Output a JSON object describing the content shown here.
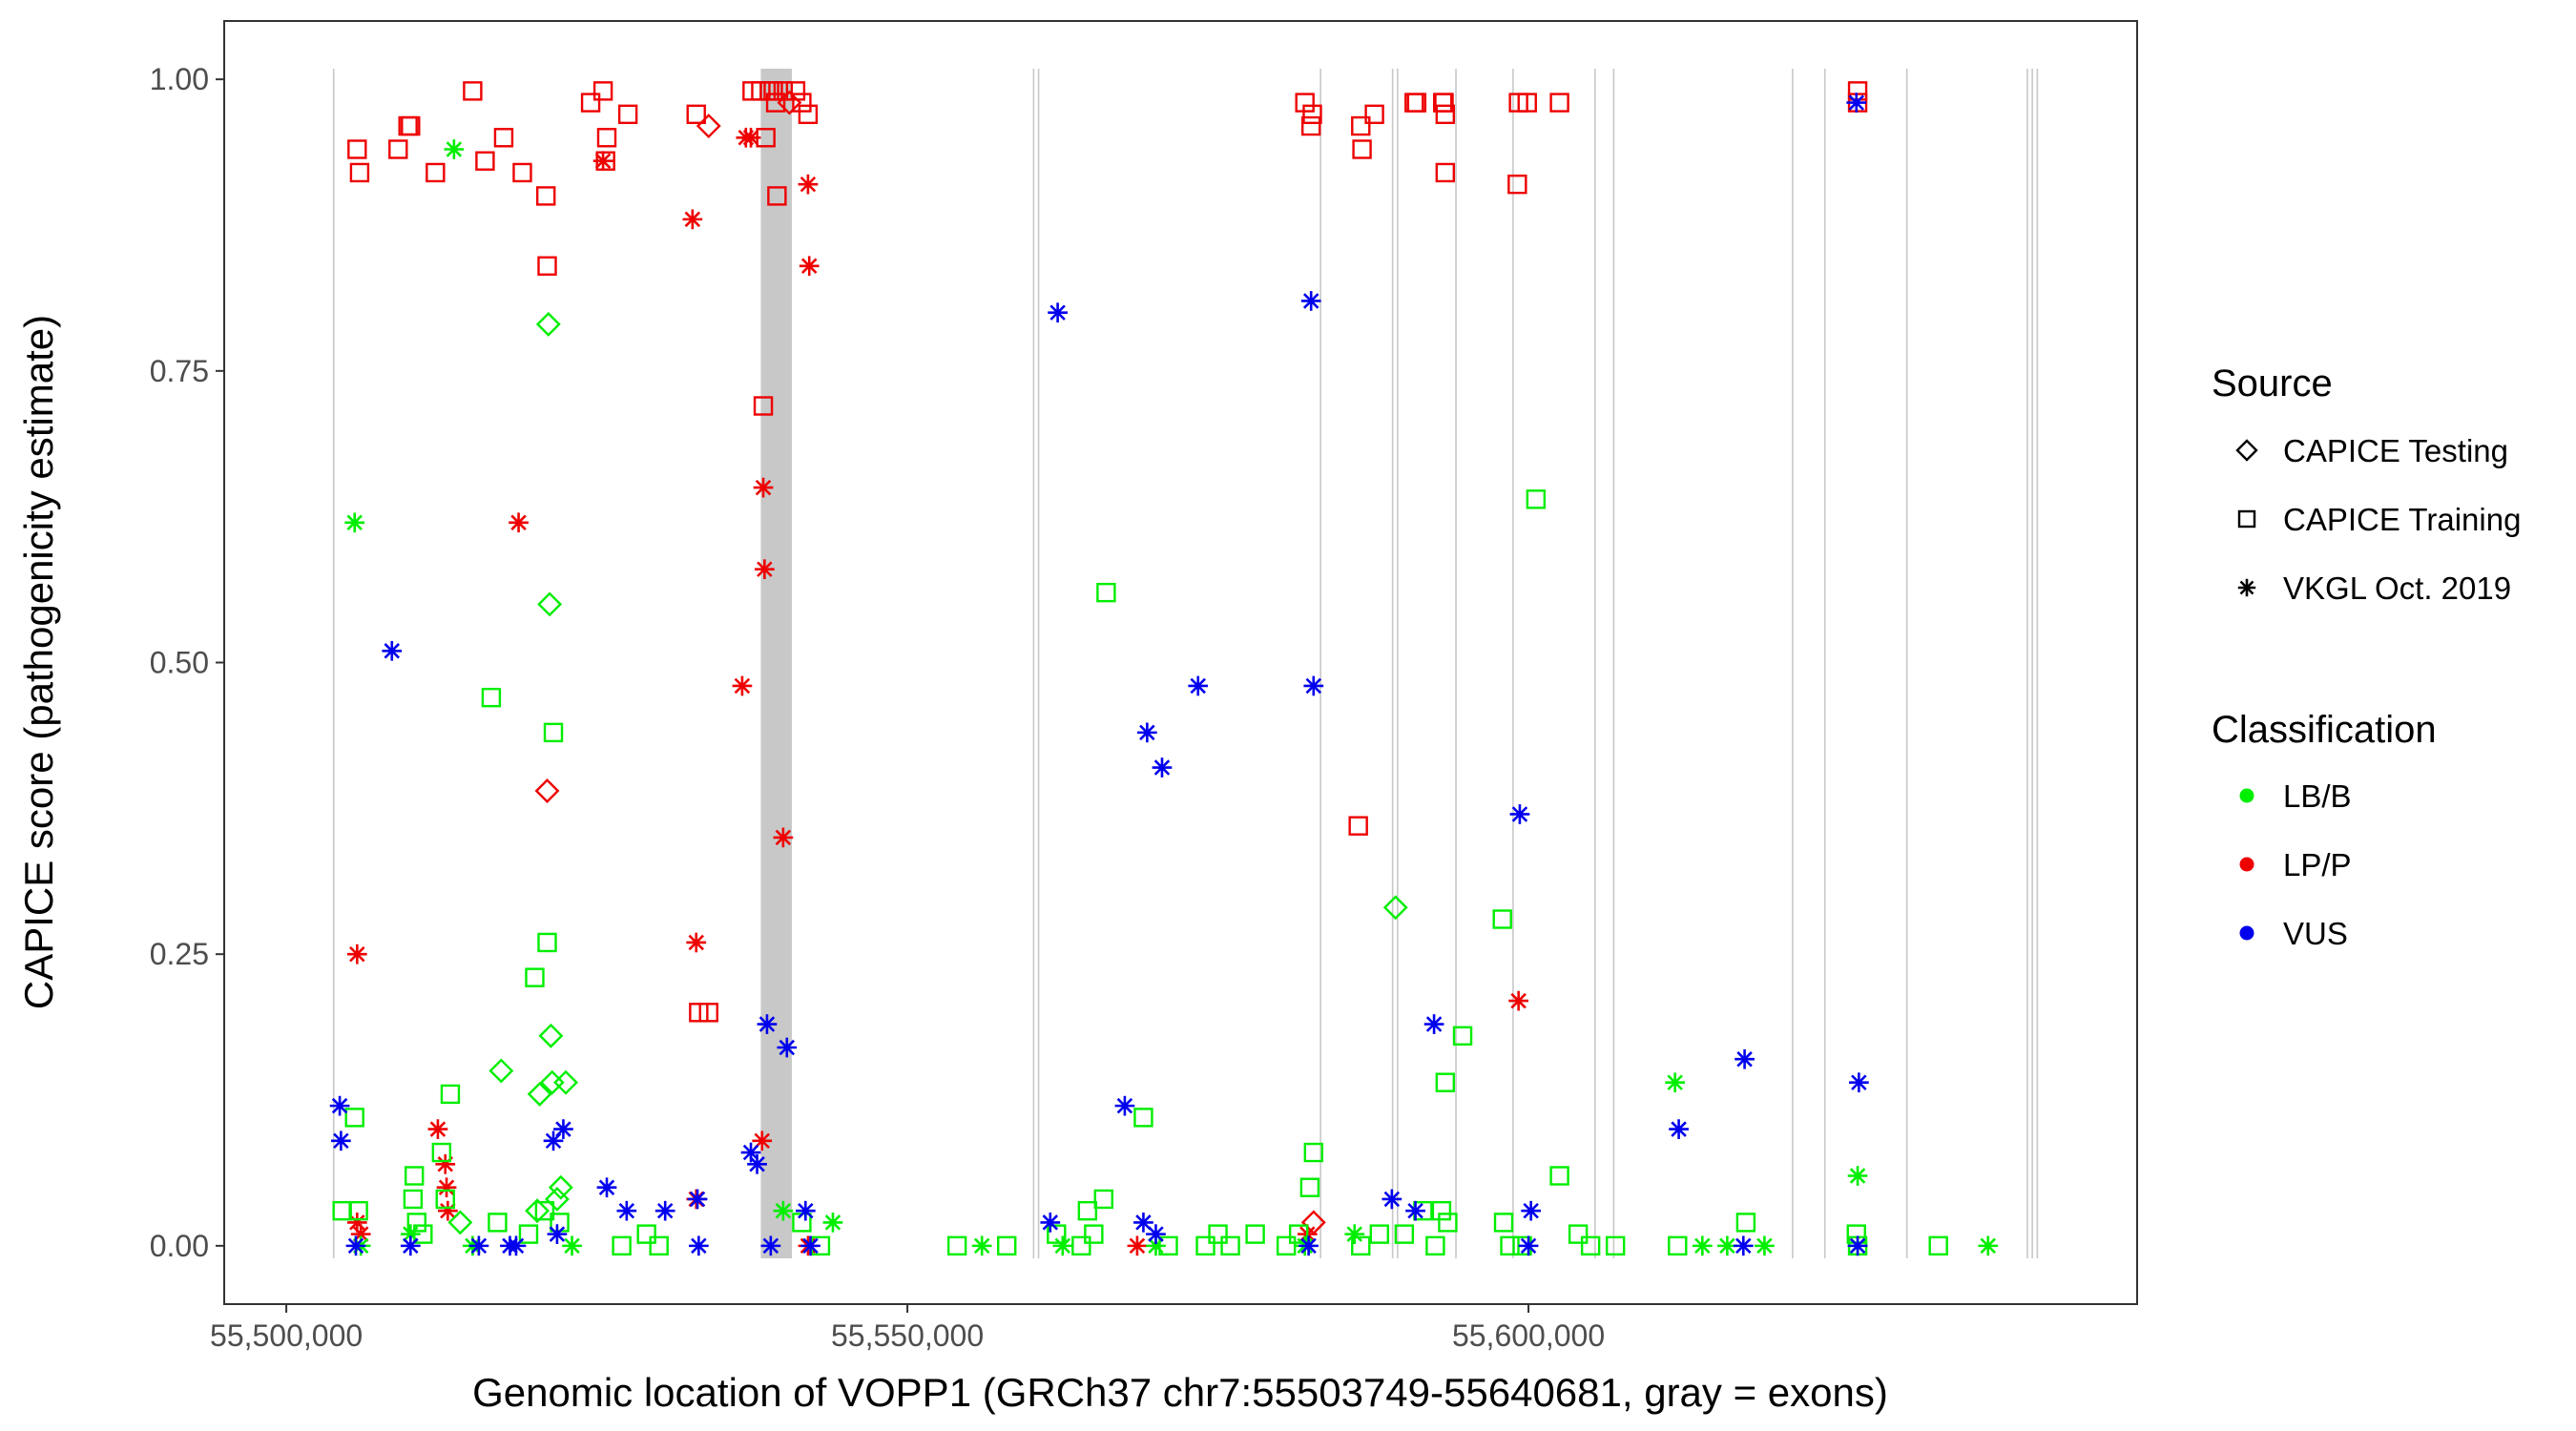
{
  "chart_data": {
    "type": "scatter",
    "xlabel": "Genomic location of VOPP1 (GRCh37 chr7:55503749-55640681, gray = exons)",
    "ylabel": "CAPICE score (pathogenicity estimate)",
    "xlim": [
      55495000,
      55649000
    ],
    "ylim": [
      -0.05,
      1.05
    ],
    "x_ticks": [
      55500000,
      55550000,
      55600000
    ],
    "x_tick_labels": [
      "55,500,000",
      "55,550,000",
      "55,600,000"
    ],
    "y_ticks": [
      0.0,
      0.25,
      0.5,
      0.75,
      1.0
    ],
    "y_tick_labels": [
      "0.00",
      "0.25",
      "0.50",
      "0.75",
      "1.00"
    ],
    "exons": [
      [
        55503749,
        55503820
      ],
      [
        55538200,
        55540700
      ],
      [
        55560100,
        55560180
      ],
      [
        55560500,
        55560560
      ],
      [
        55583200,
        55583300
      ],
      [
        55589000,
        55589080
      ],
      [
        55589400,
        55589460
      ],
      [
        55594100,
        55594200
      ],
      [
        55598700,
        55598760
      ],
      [
        55605300,
        55605360
      ],
      [
        55606800,
        55606860
      ],
      [
        55621200,
        55621300
      ],
      [
        55623800,
        55623880
      ],
      [
        55630400,
        55630480
      ],
      [
        55640100,
        55640180
      ],
      [
        55640500,
        55640560
      ],
      [
        55640900,
        55640960
      ]
    ],
    "legend": {
      "source_title": "Source",
      "source_items": [
        {
          "label": "CAPICE Testing",
          "shape": "diamond"
        },
        {
          "label": "CAPICE Training",
          "shape": "square"
        },
        {
          "label": "VKGL Oct. 2019",
          "shape": "asterisk"
        }
      ],
      "classification_title": "Classification",
      "classification_items": [
        {
          "label": "LB/B",
          "color": "#00ee00"
        },
        {
          "label": "LP/P",
          "color": "#ee0000"
        },
        {
          "label": "VUS",
          "color": "#0000ee"
        }
      ]
    },
    "series": [
      {
        "name": "LP/P - CAPICE Training",
        "class": "LP/P",
        "source": "CAPICE Training",
        "points": [
          [
            55505700,
            0.94
          ],
          [
            55505900,
            0.92
          ],
          [
            55509000,
            0.94
          ],
          [
            55509800,
            0.96
          ],
          [
            55510000,
            0.96
          ],
          [
            55512000,
            0.92
          ],
          [
            55515000,
            0.99
          ],
          [
            55516000,
            0.93
          ],
          [
            55517500,
            0.95
          ],
          [
            55519000,
            0.92
          ],
          [
            55520900,
            0.9
          ],
          [
            55521000,
            0.84
          ],
          [
            55524500,
            0.98
          ],
          [
            55525500,
            0.99
          ],
          [
            55525700,
            0.93
          ],
          [
            55525800,
            0.95
          ],
          [
            55527500,
            0.97
          ],
          [
            55533000,
            0.97
          ],
          [
            55533200,
            0.2
          ],
          [
            55534000,
            0.2
          ],
          [
            55537500,
            0.99
          ],
          [
            55538200,
            0.99
          ],
          [
            55538400,
            0.72
          ],
          [
            55538600,
            0.95
          ],
          [
            55538900,
            0.99
          ],
          [
            55539200,
            0.99
          ],
          [
            55539400,
            0.98
          ],
          [
            55539500,
            0.9
          ],
          [
            55540000,
            0.99
          ],
          [
            55541000,
            0.99
          ],
          [
            55541500,
            0.98
          ],
          [
            55542000,
            0.97
          ],
          [
            55582000,
            0.98
          ],
          [
            55582500,
            0.96
          ],
          [
            55582600,
            0.97
          ],
          [
            55586300,
            0.36
          ],
          [
            55586500,
            0.96
          ],
          [
            55586600,
            0.94
          ],
          [
            55587600,
            0.97
          ],
          [
            55590800,
            0.98
          ],
          [
            55591000,
            0.98
          ],
          [
            55593100,
            0.98
          ],
          [
            55593200,
            0.98
          ],
          [
            55593300,
            0.97
          ],
          [
            55593300,
            0.92
          ],
          [
            55599100,
            0.91
          ],
          [
            55599200,
            0.98
          ],
          [
            55599900,
            0.98
          ],
          [
            55602500,
            0.98
          ],
          [
            55626500,
            0.99
          ],
          [
            55626500,
            0.98
          ]
        ]
      },
      {
        "name": "LP/P - CAPICE Testing",
        "class": "LP/P",
        "source": "CAPICE Testing",
        "points": [
          [
            55534000,
            0.96
          ],
          [
            55521000,
            0.39
          ],
          [
            55540500,
            0.98
          ],
          [
            55582700,
            0.02
          ]
        ]
      },
      {
        "name": "LP/P - VKGL Oct. 2019",
        "class": "LP/P",
        "source": "VKGL Oct. 2019",
        "points": [
          [
            55505700,
            0.25
          ],
          [
            55505700,
            0.02
          ],
          [
            55506000,
            0.01
          ],
          [
            55512200,
            0.1
          ],
          [
            55512800,
            0.07
          ],
          [
            55512900,
            0.05
          ],
          [
            55513000,
            0.03
          ],
          [
            55518700,
            0.62
          ],
          [
            55525500,
            0.93
          ],
          [
            55532700,
            0.88
          ],
          [
            55533000,
            0.26
          ],
          [
            55533000,
            0.04
          ],
          [
            55536700,
            0.48
          ],
          [
            55537000,
            0.95
          ],
          [
            55537400,
            0.95
          ],
          [
            55538300,
            0.09
          ],
          [
            55538400,
            0.65
          ],
          [
            55538500,
            0.58
          ],
          [
            55540000,
            0.35
          ],
          [
            55542000,
            0.91
          ],
          [
            55542100,
            0.84
          ],
          [
            55542000,
            0.0
          ],
          [
            55568500,
            0.0
          ],
          [
            55582200,
            0.01
          ],
          [
            55599200,
            0.21
          ]
        ]
      },
      {
        "name": "LB/B - CAPICE Training",
        "class": "LB/B",
        "source": "CAPICE Training",
        "points": [
          [
            55504500,
            0.03
          ],
          [
            55505500,
            0.11
          ],
          [
            55505800,
            0.03
          ],
          [
            55510300,
            0.06
          ],
          [
            55510200,
            0.04
          ],
          [
            55510500,
            0.02
          ],
          [
            55511000,
            0.01
          ],
          [
            55512500,
            0.08
          ],
          [
            55512800,
            0.04
          ],
          [
            55513200,
            0.13
          ],
          [
            55516500,
            0.47
          ],
          [
            55520000,
            0.23
          ],
          [
            55521000,
            0.26
          ],
          [
            55521500,
            0.44
          ],
          [
            55517000,
            0.02
          ],
          [
            55519500,
            0.01
          ],
          [
            55520800,
            0.03
          ],
          [
            55522000,
            0.02
          ],
          [
            55527000,
            0.0
          ],
          [
            55529000,
            0.01
          ],
          [
            55530000,
            0.0
          ],
          [
            55541500,
            0.02
          ],
          [
            55543000,
            0.0
          ],
          [
            55554000,
            0.0
          ],
          [
            55558000,
            0.0
          ],
          [
            55562000,
            0.01
          ],
          [
            55564000,
            0.0
          ],
          [
            55564500,
            0.03
          ],
          [
            55565000,
            0.01
          ],
          [
            55565800,
            0.04
          ],
          [
            55566000,
            0.56
          ],
          [
            55569000,
            0.11
          ],
          [
            55571000,
            0.0
          ],
          [
            55574000,
            0.0
          ],
          [
            55575000,
            0.01
          ],
          [
            55576000,
            0.0
          ],
          [
            55578000,
            0.01
          ],
          [
            55580500,
            0.0
          ],
          [
            55581500,
            0.01
          ],
          [
            55582400,
            0.05
          ],
          [
            55582700,
            0.08
          ],
          [
            55586500,
            0.0
          ],
          [
            55588000,
            0.01
          ],
          [
            55590000,
            0.01
          ],
          [
            55591500,
            0.03
          ],
          [
            55592500,
            0.0
          ],
          [
            55593000,
            0.03
          ],
          [
            55593300,
            0.14
          ],
          [
            55593500,
            0.02
          ],
          [
            55594700,
            0.18
          ],
          [
            55597900,
            0.28
          ],
          [
            55598000,
            0.02
          ],
          [
            55598500,
            0.0
          ],
          [
            55599500,
            0.0
          ],
          [
            55600600,
            0.64
          ],
          [
            55602500,
            0.06
          ],
          [
            55604000,
            0.01
          ],
          [
            55605000,
            0.0
          ],
          [
            55607000,
            0.0
          ],
          [
            55612000,
            0.0
          ],
          [
            55617500,
            0.02
          ],
          [
            55626400,
            0.01
          ],
          [
            55626500,
            0.0
          ],
          [
            55633000,
            0.0
          ]
        ]
      },
      {
        "name": "LB/B - CAPICE Testing",
        "class": "LB/B",
        "source": "CAPICE Testing",
        "points": [
          [
            55517300,
            0.15
          ],
          [
            55520400,
            0.13
          ],
          [
            55521100,
            0.79
          ],
          [
            55521200,
            0.55
          ],
          [
            55521300,
            0.18
          ],
          [
            55521400,
            0.14
          ],
          [
            55522500,
            0.14
          ],
          [
            55522100,
            0.05
          ],
          [
            55520200,
            0.03
          ],
          [
            55521800,
            0.04
          ],
          [
            55589300,
            0.29
          ],
          [
            55514000,
            0.02
          ]
        ]
      },
      {
        "name": "LB/B - VKGL Oct. 2019",
        "class": "LB/B",
        "source": "VKGL Oct. 2019",
        "points": [
          [
            55505500,
            0.62
          ],
          [
            55513500,
            0.94
          ],
          [
            55506000,
            0.0
          ],
          [
            55510000,
            0.01
          ],
          [
            55515000,
            0.0
          ],
          [
            55523000,
            0.0
          ],
          [
            55540000,
            0.03
          ],
          [
            55544000,
            0.02
          ],
          [
            55556000,
            0.0
          ],
          [
            55562500,
            0.0
          ],
          [
            55570000,
            0.0
          ],
          [
            55582000,
            0.0
          ],
          [
            55586000,
            0.01
          ],
          [
            55611800,
            0.14
          ],
          [
            55614000,
            0.0
          ],
          [
            55616000,
            0.0
          ],
          [
            55619000,
            0.0
          ],
          [
            55626500,
            0.06
          ],
          [
            55626500,
            0.0
          ],
          [
            55637000,
            0.0
          ]
        ]
      },
      {
        "name": "VUS - VKGL Oct. 2019",
        "class": "VUS",
        "source": "VKGL Oct. 2019",
        "points": [
          [
            55504300,
            0.12
          ],
          [
            55504400,
            0.09
          ],
          [
            55505600,
            0.0
          ],
          [
            55508500,
            0.51
          ],
          [
            55510000,
            0.0
          ],
          [
            55515500,
            0.0
          ],
          [
            55518000,
            0.0
          ],
          [
            55518500,
            0.0
          ],
          [
            55521500,
            0.09
          ],
          [
            55521800,
            0.01
          ],
          [
            55522300,
            0.1
          ],
          [
            55525800,
            0.05
          ],
          [
            55527400,
            0.03
          ],
          [
            55530500,
            0.03
          ],
          [
            55533100,
            0.04
          ],
          [
            55533200,
            0.0
          ],
          [
            55537400,
            0.08
          ],
          [
            55537900,
            0.07
          ],
          [
            55538700,
            0.19
          ],
          [
            55540300,
            0.17
          ],
          [
            55539000,
            0.0
          ],
          [
            55541800,
            0.03
          ],
          [
            55542200,
            0.0
          ],
          [
            55561500,
            0.02
          ],
          [
            55562100,
            0.8
          ],
          [
            55567500,
            0.12
          ],
          [
            55569300,
            0.44
          ],
          [
            55570500,
            0.41
          ],
          [
            55569000,
            0.02
          ],
          [
            55570000,
            0.01
          ],
          [
            55573400,
            0.48
          ],
          [
            55582300,
            0.0
          ],
          [
            55582500,
            0.81
          ],
          [
            55582700,
            0.48
          ],
          [
            55589000,
            0.04
          ],
          [
            55590900,
            0.03
          ],
          [
            55592400,
            0.19
          ],
          [
            55599300,
            0.37
          ],
          [
            55600200,
            0.03
          ],
          [
            55600000,
            0.0
          ],
          [
            55612100,
            0.1
          ],
          [
            55617400,
            0.16
          ],
          [
            55617300,
            0.0
          ],
          [
            55626400,
            0.98
          ],
          [
            55626600,
            0.14
          ],
          [
            55626500,
            0.0
          ]
        ]
      }
    ]
  }
}
